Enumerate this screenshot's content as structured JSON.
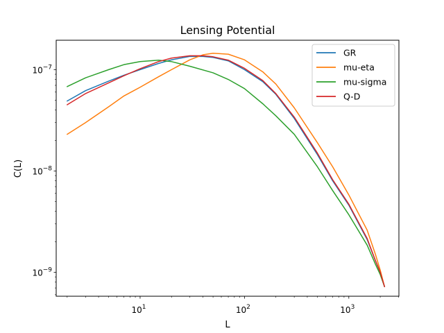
{
  "chart_data": {
    "type": "line",
    "title": "Lensing Potential",
    "xlabel": "L",
    "ylabel": "C(L)",
    "xscale": "log",
    "yscale": "log",
    "xlim": [
      1.57,
      3020
    ],
    "ylim": [
      5.8e-10,
      1.95e-07
    ],
    "grid": false,
    "legend_position": "top-right",
    "x_ticks": [
      {
        "value": 10,
        "base": "10",
        "exp": "1"
      },
      {
        "value": 100,
        "base": "10",
        "exp": "2"
      },
      {
        "value": 1000,
        "base": "10",
        "exp": "3"
      }
    ],
    "y_ticks": [
      {
        "value": 1e-09,
        "base": "10",
        "exp": "−9"
      },
      {
        "value": 1e-08,
        "base": "10",
        "exp": "−8"
      },
      {
        "value": 1e-07,
        "base": "10",
        "exp": "−7"
      }
    ],
    "series": [
      {
        "name": "GR",
        "color": "#1f77b4",
        "points": [
          [
            2,
            4.9e-08
          ],
          [
            3,
            6.2e-08
          ],
          [
            5,
            7.7e-08
          ],
          [
            7,
            8.8e-08
          ],
          [
            10,
            1e-07
          ],
          [
            15,
            1.15e-07
          ],
          [
            20,
            1.25e-07
          ],
          [
            30,
            1.35e-07
          ],
          [
            40,
            1.35e-07
          ],
          [
            50,
            1.32e-07
          ],
          [
            70,
            1.22e-07
          ],
          [
            100,
            1e-07
          ],
          [
            150,
            7.6e-08
          ],
          [
            200,
            5.7e-08
          ],
          [
            300,
            3.3e-08
          ],
          [
            500,
            1.45e-08
          ],
          [
            700,
            8e-09
          ],
          [
            1000,
            4.6e-09
          ],
          [
            1500,
            2.1e-09
          ],
          [
            1800,
            1.3e-09
          ],
          [
            2000,
            1e-09
          ],
          [
            2200,
            7.2e-10
          ]
        ]
      },
      {
        "name": "mu-eta",
        "color": "#ff7f0e",
        "points": [
          [
            2,
            2.3e-08
          ],
          [
            3,
            3e-08
          ],
          [
            5,
            4.3e-08
          ],
          [
            7,
            5.5e-08
          ],
          [
            10,
            6.7e-08
          ],
          [
            15,
            8.5e-08
          ],
          [
            20,
            1e-07
          ],
          [
            30,
            1.25e-07
          ],
          [
            40,
            1.4e-07
          ],
          [
            50,
            1.45e-07
          ],
          [
            70,
            1.42e-07
          ],
          [
            100,
            1.25e-07
          ],
          [
            150,
            9.5e-08
          ],
          [
            200,
            7.2e-08
          ],
          [
            300,
            4.2e-08
          ],
          [
            500,
            1.9e-08
          ],
          [
            700,
            1.1e-08
          ],
          [
            1000,
            5.8e-09
          ],
          [
            1500,
            2.6e-09
          ],
          [
            1800,
            1.5e-09
          ],
          [
            2000,
            1.05e-09
          ],
          [
            2200,
            7.2e-10
          ]
        ]
      },
      {
        "name": "mu-sigma",
        "color": "#2ca02c",
        "points": [
          [
            2,
            6.8e-08
          ],
          [
            3,
            8.3e-08
          ],
          [
            5,
            1e-07
          ],
          [
            7,
            1.12e-07
          ],
          [
            10,
            1.2e-07
          ],
          [
            15,
            1.24e-07
          ],
          [
            20,
            1.2e-07
          ],
          [
            30,
            1.08e-07
          ],
          [
            50,
            9.3e-08
          ],
          [
            70,
            8e-08
          ],
          [
            100,
            6.5e-08
          ],
          [
            150,
            4.6e-08
          ],
          [
            200,
            3.5e-08
          ],
          [
            300,
            2.3e-08
          ],
          [
            500,
            1.1e-08
          ],
          [
            700,
            6.4e-09
          ],
          [
            1000,
            3.7e-09
          ],
          [
            1500,
            1.85e-09
          ],
          [
            1800,
            1.2e-09
          ],
          [
            2000,
            9.5e-10
          ],
          [
            2200,
            7.2e-10
          ]
        ]
      },
      {
        "name": "Q-D",
        "color": "#d62728",
        "points": [
          [
            2,
            4.5e-08
          ],
          [
            3,
            5.8e-08
          ],
          [
            5,
            7.4e-08
          ],
          [
            7,
            8.7e-08
          ],
          [
            10,
            1.02e-07
          ],
          [
            15,
            1.2e-07
          ],
          [
            20,
            1.3e-07
          ],
          [
            30,
            1.37e-07
          ],
          [
            40,
            1.37e-07
          ],
          [
            50,
            1.34e-07
          ],
          [
            70,
            1.24e-07
          ],
          [
            100,
            1.03e-07
          ],
          [
            150,
            7.8e-08
          ],
          [
            200,
            5.8e-08
          ],
          [
            300,
            3.4e-08
          ],
          [
            500,
            1.5e-08
          ],
          [
            700,
            8.2e-09
          ],
          [
            1000,
            4.7e-09
          ],
          [
            1500,
            2.15e-09
          ],
          [
            1800,
            1.3e-09
          ],
          [
            2000,
            1e-09
          ],
          [
            2200,
            7.2e-10
          ]
        ]
      }
    ]
  }
}
